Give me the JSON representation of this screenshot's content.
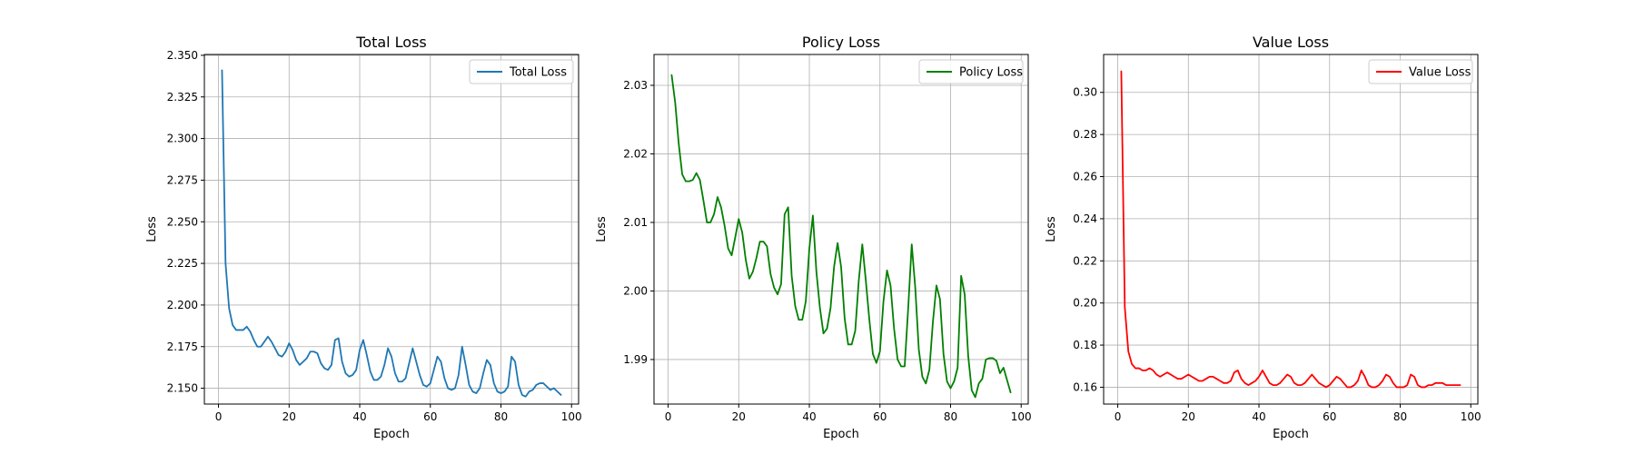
{
  "chart_data": [
    {
      "type": "line",
      "title": "Total Loss",
      "xlabel": "Epoch",
      "ylabel": "Loss",
      "xlim": [
        -4,
        102
      ],
      "ylim": [
        2.1405,
        2.3505
      ],
      "xticks": [
        0,
        20,
        40,
        60,
        80,
        100
      ],
      "xtick_labels": [
        "0",
        "20",
        "40",
        "60",
        "80",
        "100"
      ],
      "yticks": [
        2.15,
        2.175,
        2.2,
        2.225,
        2.25,
        2.275,
        2.3,
        2.325,
        2.35
      ],
      "ytick_labels": [
        "2.150",
        "2.175",
        "2.200",
        "2.225",
        "2.250",
        "2.275",
        "2.300",
        "2.325",
        "2.350"
      ],
      "grid": true,
      "legend": "top-right",
      "color": "#1f77b4",
      "series": [
        {
          "name": "Total Loss",
          "x": [
            1,
            2,
            3,
            4,
            5,
            6,
            7,
            8,
            9,
            10,
            11,
            12,
            13,
            14,
            15,
            16,
            17,
            18,
            19,
            20,
            21,
            22,
            23,
            24,
            25,
            26,
            27,
            28,
            29,
            30,
            31,
            32,
            33,
            34,
            35,
            36,
            37,
            38,
            39,
            40,
            41,
            42,
            43,
            44,
            45,
            46,
            47,
            48,
            49,
            50,
            51,
            52,
            53,
            54,
            55,
            56,
            57,
            58,
            59,
            60,
            61,
            62,
            63,
            64,
            65,
            66,
            67,
            68,
            69,
            70,
            71,
            72,
            73,
            74,
            75,
            76,
            77,
            78,
            79,
            80,
            81,
            82,
            83,
            84,
            85,
            86,
            87,
            88,
            89,
            90,
            91,
            92,
            93,
            94,
            95,
            96,
            97
          ],
          "values": [
            2.341,
            2.225,
            2.198,
            2.188,
            2.185,
            2.185,
            2.185,
            2.187,
            2.184,
            2.179,
            2.175,
            2.175,
            2.178,
            2.181,
            2.178,
            2.174,
            2.17,
            2.169,
            2.172,
            2.177,
            2.173,
            2.167,
            2.164,
            2.166,
            2.168,
            2.172,
            2.172,
            2.171,
            2.165,
            2.162,
            2.161,
            2.164,
            2.179,
            2.18,
            2.166,
            2.159,
            2.157,
            2.158,
            2.161,
            2.173,
            2.179,
            2.17,
            2.16,
            2.155,
            2.155,
            2.157,
            2.164,
            2.174,
            2.169,
            2.159,
            2.154,
            2.154,
            2.156,
            2.165,
            2.174,
            2.166,
            2.158,
            2.152,
            2.151,
            2.153,
            2.161,
            2.169,
            2.166,
            2.156,
            2.15,
            2.149,
            2.15,
            2.158,
            2.175,
            2.164,
            2.152,
            2.148,
            2.147,
            2.15,
            2.159,
            2.167,
            2.164,
            2.153,
            2.148,
            2.147,
            2.148,
            2.151,
            2.169,
            2.166,
            2.152,
            2.146,
            2.145,
            2.148,
            2.149,
            2.152,
            2.153,
            2.153,
            2.151,
            2.149,
            2.15,
            2.148,
            2.146
          ]
        }
      ]
    },
    {
      "type": "line",
      "title": "Policy Loss",
      "xlabel": "Epoch",
      "ylabel": "Loss",
      "xlim": [
        -4,
        102
      ],
      "ylim": [
        1.9835,
        2.0345
      ],
      "xticks": [
        0,
        20,
        40,
        60,
        80,
        100
      ],
      "xtick_labels": [
        "0",
        "20",
        "40",
        "60",
        "80",
        "100"
      ],
      "yticks": [
        1.99,
        2.0,
        2.01,
        2.02,
        2.03
      ],
      "ytick_labels": [
        "1.99",
        "2.00",
        "2.01",
        "2.02",
        "2.03"
      ],
      "grid": true,
      "legend": "top-right",
      "color": "#008000",
      "series": [
        {
          "name": "Policy Loss",
          "x": [
            1,
            2,
            3,
            4,
            5,
            6,
            7,
            8,
            9,
            10,
            11,
            12,
            13,
            14,
            15,
            16,
            17,
            18,
            19,
            20,
            21,
            22,
            23,
            24,
            25,
            26,
            27,
            28,
            29,
            30,
            31,
            32,
            33,
            34,
            35,
            36,
            37,
            38,
            39,
            40,
            41,
            42,
            43,
            44,
            45,
            46,
            47,
            48,
            49,
            50,
            51,
            52,
            53,
            54,
            55,
            56,
            57,
            58,
            59,
            60,
            61,
            62,
            63,
            64,
            65,
            66,
            67,
            68,
            69,
            70,
            71,
            72,
            73,
            74,
            75,
            76,
            77,
            78,
            79,
            80,
            81,
            82,
            83,
            84,
            85,
            86,
            87,
            88,
            89,
            90,
            91,
            92,
            93,
            94,
            95,
            96,
            97
          ],
          "values": [
            2.0315,
            2.0275,
            2.0215,
            2.017,
            2.016,
            2.016,
            2.0162,
            2.0172,
            2.0162,
            2.0132,
            2.01,
            2.01,
            2.0112,
            2.0137,
            2.0122,
            2.0095,
            2.0062,
            2.0052,
            2.0078,
            2.0105,
            2.0085,
            2.0045,
            2.0018,
            2.0028,
            2.0048,
            2.0072,
            2.0072,
            2.0065,
            2.0025,
            2.0005,
            1.9995,
            2.001,
            2.0112,
            2.0122,
            2.0022,
            1.9978,
            1.9958,
            1.9958,
            1.9985,
            2.0062,
            2.011,
            2.0028,
            1.9975,
            1.9938,
            1.9945,
            1.9975,
            2.0035,
            2.007,
            2.0035,
            1.996,
            1.9922,
            1.9922,
            1.9942,
            2.0015,
            2.0068,
            2.0015,
            1.9958,
            1.9908,
            1.9895,
            1.9912,
            1.9985,
            2.003,
            2.0008,
            1.9945,
            1.99,
            1.989,
            1.989,
            1.9975,
            2.0068,
            2.0005,
            1.9915,
            1.9875,
            1.9865,
            1.9885,
            1.9955,
            2.0008,
            1.9988,
            1.9908,
            1.9868,
            1.9858,
            1.9868,
            1.9888,
            2.0022,
            1.9995,
            1.9905,
            1.9855,
            1.9845,
            1.9865,
            1.9872,
            1.99,
            1.9902,
            1.9902,
            1.9898,
            1.988,
            1.9888,
            1.987,
            1.9852
          ]
        }
      ]
    },
    {
      "type": "line",
      "title": "Value Loss",
      "xlabel": "Epoch",
      "ylabel": "Loss",
      "xlim": [
        -4,
        102
      ],
      "ylim": [
        0.152,
        0.318
      ],
      "xticks": [
        0,
        20,
        40,
        60,
        80,
        100
      ],
      "xtick_labels": [
        "0",
        "20",
        "40",
        "60",
        "80",
        "100"
      ],
      "yticks": [
        0.16,
        0.18,
        0.2,
        0.22,
        0.24,
        0.26,
        0.28,
        0.3
      ],
      "ytick_labels": [
        "0.16",
        "0.18",
        "0.20",
        "0.22",
        "0.24",
        "0.26",
        "0.28",
        "0.30"
      ],
      "grid": true,
      "legend": "top-right",
      "color": "#ff0000",
      "series": [
        {
          "name": "Value Loss",
          "x": [
            1,
            2,
            3,
            4,
            5,
            6,
            7,
            8,
            9,
            10,
            11,
            12,
            13,
            14,
            15,
            16,
            17,
            18,
            19,
            20,
            21,
            22,
            23,
            24,
            25,
            26,
            27,
            28,
            29,
            30,
            31,
            32,
            33,
            34,
            35,
            36,
            37,
            38,
            39,
            40,
            41,
            42,
            43,
            44,
            45,
            46,
            47,
            48,
            49,
            50,
            51,
            52,
            53,
            54,
            55,
            56,
            57,
            58,
            59,
            60,
            61,
            62,
            63,
            64,
            65,
            66,
            67,
            68,
            69,
            70,
            71,
            72,
            73,
            74,
            75,
            76,
            77,
            78,
            79,
            80,
            81,
            82,
            83,
            84,
            85,
            86,
            87,
            88,
            89,
            90,
            91,
            92,
            93,
            94,
            95,
            96,
            97
          ],
          "values": [
            0.31,
            0.198,
            0.177,
            0.171,
            0.169,
            0.169,
            0.168,
            0.168,
            0.169,
            0.168,
            0.166,
            0.165,
            0.166,
            0.167,
            0.166,
            0.165,
            0.164,
            0.164,
            0.165,
            0.166,
            0.165,
            0.164,
            0.163,
            0.163,
            0.164,
            0.165,
            0.165,
            0.164,
            0.163,
            0.162,
            0.162,
            0.163,
            0.167,
            0.168,
            0.164,
            0.162,
            0.161,
            0.162,
            0.163,
            0.165,
            0.168,
            0.165,
            0.162,
            0.161,
            0.161,
            0.162,
            0.164,
            0.166,
            0.165,
            0.162,
            0.161,
            0.161,
            0.162,
            0.164,
            0.166,
            0.164,
            0.162,
            0.161,
            0.16,
            0.161,
            0.163,
            0.165,
            0.164,
            0.162,
            0.16,
            0.16,
            0.161,
            0.163,
            0.168,
            0.165,
            0.161,
            0.16,
            0.16,
            0.161,
            0.163,
            0.166,
            0.165,
            0.162,
            0.16,
            0.16,
            0.16,
            0.161,
            0.166,
            0.165,
            0.161,
            0.16,
            0.16,
            0.161,
            0.161,
            0.162,
            0.162,
            0.162,
            0.161,
            0.161,
            0.161,
            0.161,
            0.161
          ]
        }
      ]
    }
  ]
}
